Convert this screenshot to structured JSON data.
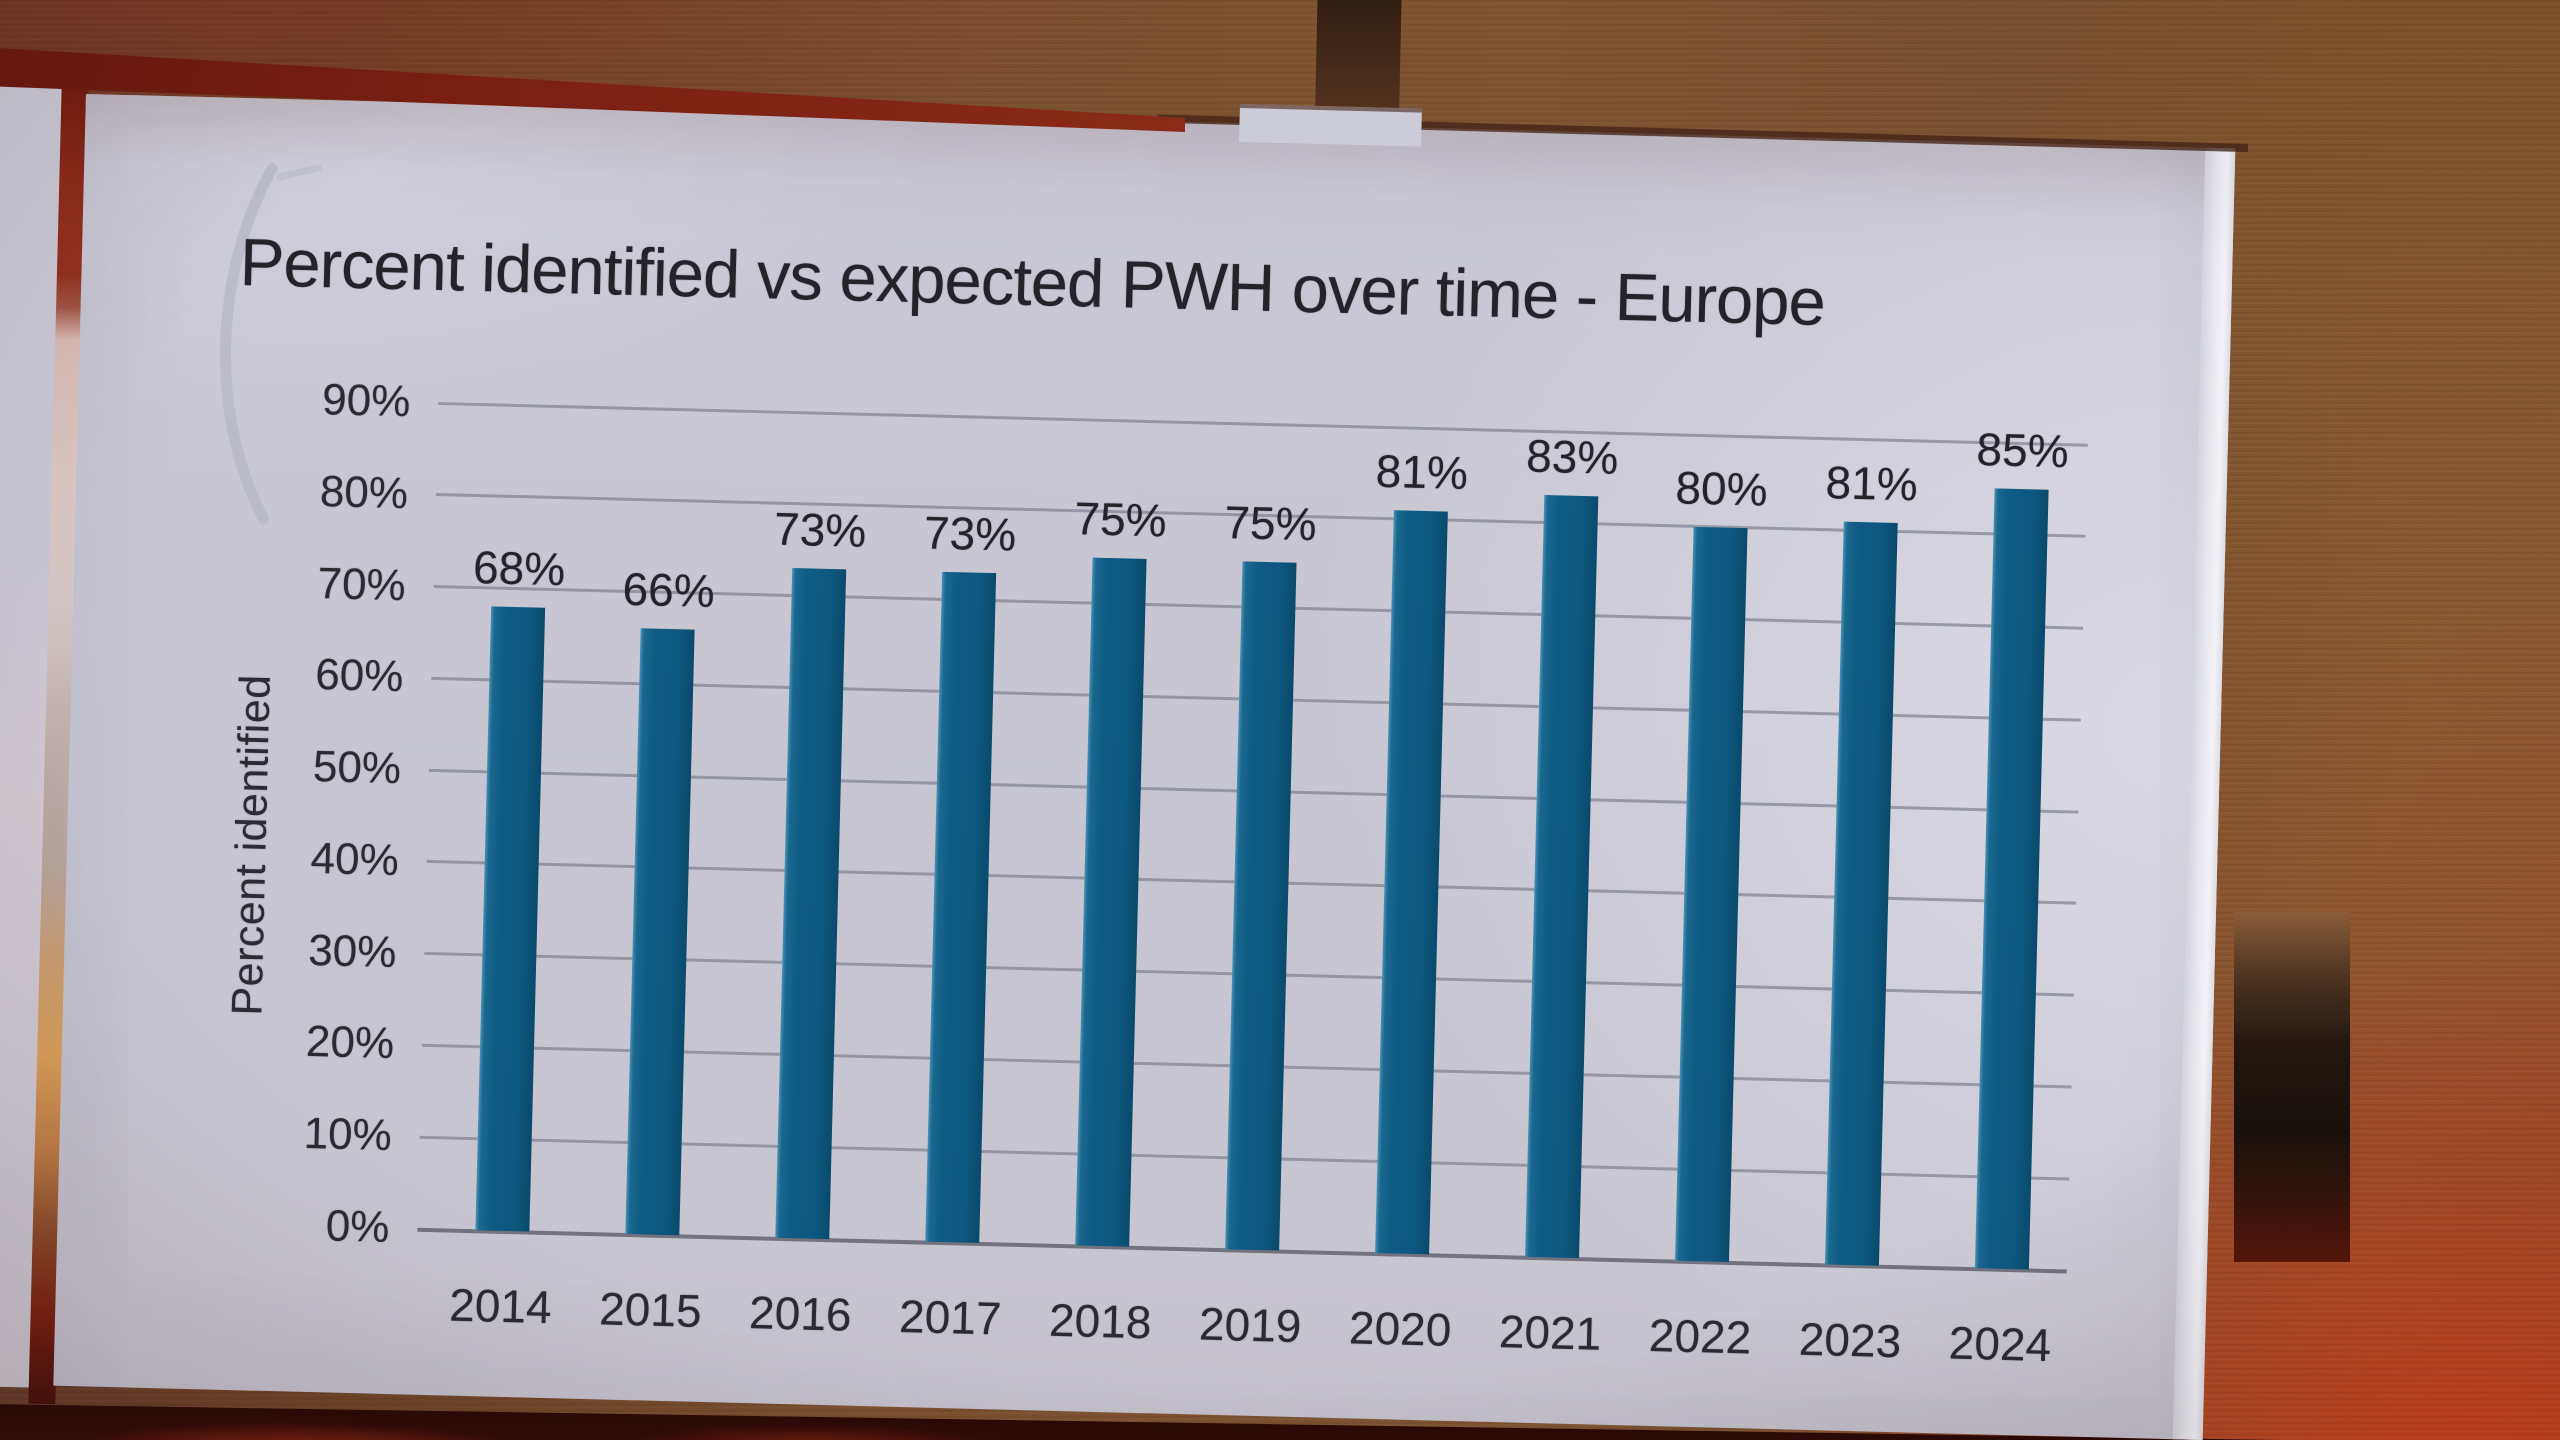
{
  "chart_data": {
    "type": "bar",
    "title": "Percent identified vs expected PWH over time - Europe",
    "categories": [
      "2014",
      "2015",
      "2016",
      "2017",
      "2018",
      "2019",
      "2020",
      "2021",
      "2022",
      "2023",
      "2024"
    ],
    "values": [
      68,
      66,
      73,
      73,
      75,
      75,
      81,
      83,
      80,
      81,
      85
    ],
    "bar_labels": [
      "68%",
      "66%",
      "73%",
      "73%",
      "75%",
      "75%",
      "81%",
      "83%",
      "80%",
      "81%",
      "85%"
    ],
    "xlabel": "",
    "ylabel": "Percent identified",
    "ylim": [
      0,
      90
    ],
    "yticks_top_to_bottom": [
      "90%",
      "80%",
      "70%",
      "60%",
      "50%",
      "40%",
      "30%",
      "20%",
      "10%",
      "0%"
    ],
    "grid": true,
    "legend": false,
    "bar_color": "#0d5a84"
  },
  "colors": {
    "slide_background": "#c8c7d3",
    "bar": "#0d5a84",
    "gridline": "#9fa0ac",
    "axis_line": "#6a6b75",
    "slide_text": "#26252c",
    "wall_brown": "#7d5230",
    "beam_maroon": "#7b1f12",
    "glow_red": "#d24a20",
    "floor_dark": "#2e0b06",
    "bezel_highlight": "#efeff4"
  }
}
